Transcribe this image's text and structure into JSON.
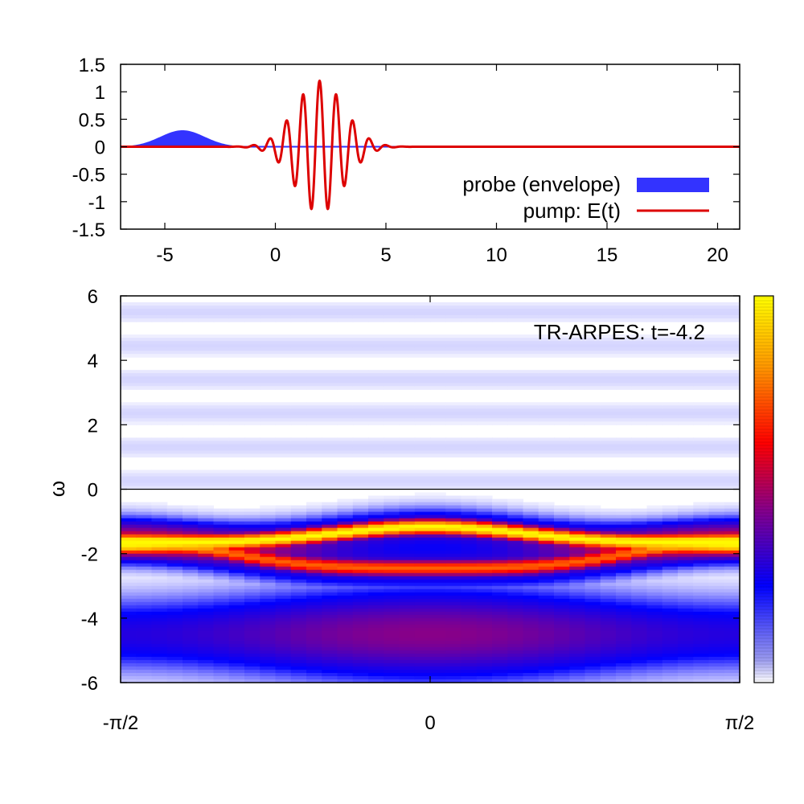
{
  "chart_data": [
    {
      "type": "line",
      "xlim": [
        -7,
        21
      ],
      "ylim": [
        -1.5,
        1.5
      ],
      "x_ticks": [
        "-5",
        "0",
        "5",
        "10",
        "15",
        "20"
      ],
      "y_ticks": [
        "1.5",
        "1",
        "0.5",
        "0",
        "-0.5",
        "-1",
        "-1.5"
      ],
      "legend_position": "bottom-right",
      "series": [
        {
          "name": "probe (envelope)",
          "style": "filled-area",
          "color": "#3333ff",
          "envelope": {
            "center": -4.2,
            "amplitude": 0.3,
            "sigma": 1.0,
            "xmin": -7,
            "xmax": -1.5
          }
        },
        {
          "name": "pump: E(t)",
          "style": "line",
          "color": "#dd0000",
          "pulse": {
            "center": 2.0,
            "amplitude": 1.2,
            "sigma": 1.1,
            "period": 0.75,
            "xmin": -7,
            "xmax": 21
          }
        }
      ]
    },
    {
      "type": "heatmap",
      "annotation": "TR-ARPES: t=-4.2",
      "ylabel": "ω",
      "ylim": [
        -6,
        6
      ],
      "xlim": [
        -1.5708,
        1.5708
      ],
      "x_ticks": [
        "-π/2",
        "0",
        "π/2"
      ],
      "y_ticks": [
        "6",
        "4",
        "2",
        "0",
        "-2",
        "-4",
        "-6"
      ],
      "reference_line": 0,
      "colorscale": [
        "#ffffff",
        "#0000ff",
        "#880088",
        "#ff0000",
        "#ffaa00",
        "#ffff00"
      ],
      "bands": {
        "lower": {
          "edge": -1.7,
          "center": -1.25,
          "curvature": 0.45,
          "width": 0.28
        },
        "upper": {
          "edge": -1.7,
          "center": -2.55,
          "curvature": 0.9,
          "width": 0.3
        }
      },
      "continuum": {
        "from": -6,
        "to": -2,
        "center": -4.5
      },
      "colorbar": {
        "position": "right",
        "has_tick_labels": false
      }
    }
  ]
}
